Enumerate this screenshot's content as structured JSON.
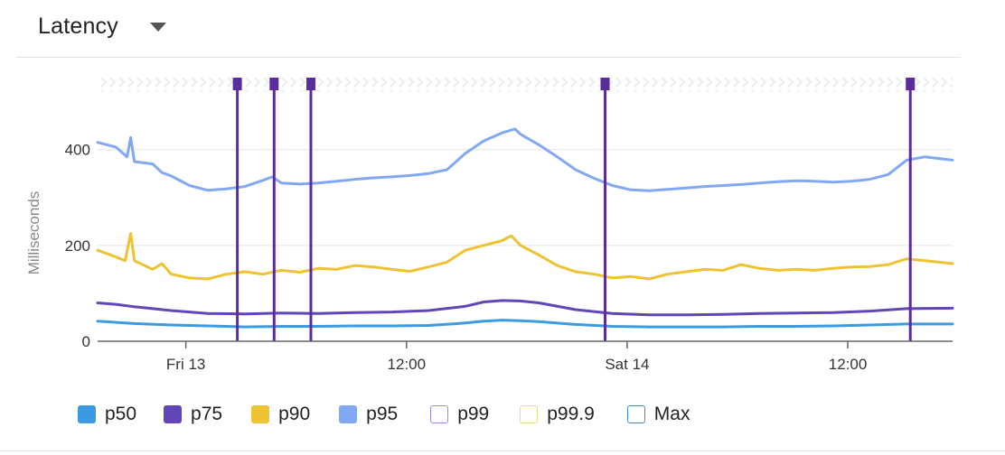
{
  "header": {
    "title": "Latency",
    "dropdown_icon": "caret-down-icon"
  },
  "chart_data": {
    "type": "line",
    "ylabel": "Milliseconds",
    "xlabel": "",
    "ylim": [
      0,
      520
    ],
    "yticks": [
      0,
      200,
      400
    ],
    "ytick_labels": [
      "0",
      "200",
      "400"
    ],
    "xlim": [
      0,
      46.5
    ],
    "xticks": [
      {
        "x": 4.8,
        "label": "Fri 13"
      },
      {
        "x": 16.8,
        "label": "12:00"
      },
      {
        "x": 28.8,
        "label": "Sat 14"
      },
      {
        "x": 40.8,
        "label": "12:00"
      }
    ],
    "events": [
      7.6,
      9.6,
      11.6,
      27.6,
      44.2
    ],
    "grid": true,
    "legend_position": "bottom",
    "series": [
      {
        "name": "p50",
        "color": "#3b9ae1",
        "filled": true,
        "visible": true,
        "x": [
          0,
          2,
          4,
          6,
          8,
          10,
          12,
          14,
          16,
          18,
          20,
          21,
          22,
          23,
          24,
          26,
          28,
          30,
          32,
          34,
          36,
          38,
          40,
          42,
          44,
          46.5
        ],
        "values": [
          42,
          37,
          34,
          32,
          30,
          31,
          31,
          32,
          32,
          33,
          38,
          42,
          44,
          43,
          41,
          35,
          31,
          30,
          30,
          30,
          31,
          31,
          32,
          34,
          36,
          36
        ]
      },
      {
        "name": "p75",
        "color": "#6146b8",
        "filled": true,
        "visible": true,
        "x": [
          0,
          1,
          2,
          4,
          6,
          8,
          10,
          12,
          14,
          16,
          18,
          20,
          21,
          22,
          23,
          24,
          26,
          28,
          30,
          32,
          34,
          36,
          38,
          40,
          42,
          44,
          46.5
        ],
        "values": [
          80,
          77,
          72,
          64,
          58,
          57,
          59,
          58,
          60,
          61,
          64,
          73,
          82,
          85,
          84,
          80,
          66,
          58,
          55,
          55,
          56,
          58,
          59,
          60,
          63,
          68,
          69
        ]
      },
      {
        "name": "p90",
        "color": "#eec232",
        "filled": true,
        "visible": true,
        "x": [
          0,
          1,
          1.5,
          1.8,
          2,
          3,
          3.5,
          4,
          5,
          6,
          7,
          8,
          9,
          10,
          11,
          12,
          13,
          14,
          15,
          16,
          17,
          18,
          19,
          20,
          21,
          22,
          22.5,
          23,
          24,
          25,
          26,
          27,
          28,
          29,
          30,
          31,
          32,
          33,
          34,
          35,
          36,
          37,
          38,
          39,
          40,
          41,
          42,
          43,
          44,
          45,
          46.5
        ],
        "values": [
          190,
          176,
          168,
          225,
          168,
          150,
          162,
          140,
          132,
          130,
          140,
          145,
          140,
          148,
          144,
          152,
          150,
          158,
          155,
          150,
          146,
          155,
          165,
          190,
          200,
          210,
          220,
          200,
          180,
          158,
          145,
          140,
          132,
          135,
          130,
          140,
          145,
          150,
          148,
          160,
          152,
          148,
          150,
          148,
          152,
          155,
          156,
          160,
          172,
          168,
          162
        ]
      },
      {
        "name": "p95",
        "color": "#82a8f4",
        "filled": true,
        "visible": true,
        "x": [
          0,
          1,
          1.6,
          1.8,
          2,
          3,
          3.5,
          4,
          5,
          6,
          7,
          8,
          9,
          9.5,
          10,
          11,
          12,
          13,
          14,
          15,
          16,
          17,
          18,
          19,
          20,
          21,
          22,
          22.7,
          23,
          24,
          25,
          26,
          27,
          28,
          29,
          30,
          31,
          32,
          33,
          34,
          35,
          36,
          37,
          38,
          39,
          40,
          41,
          42,
          43,
          44,
          45,
          46.5
        ],
        "values": [
          415,
          405,
          385,
          425,
          375,
          370,
          352,
          345,
          325,
          315,
          318,
          323,
          336,
          343,
          330,
          328,
          330,
          334,
          338,
          341,
          343,
          346,
          350,
          358,
          392,
          418,
          435,
          443,
          432,
          410,
          385,
          358,
          340,
          325,
          316,
          314,
          317,
          320,
          323,
          325,
          327,
          330,
          333,
          335,
          334,
          332,
          334,
          338,
          348,
          378,
          385,
          378
        ]
      },
      {
        "name": "p99",
        "color": "#9b87e0",
        "filled": false,
        "visible": false
      },
      {
        "name": "p99.9",
        "color": "#efd88a",
        "filled": false,
        "visible": false
      },
      {
        "name": "Max",
        "color": "#3b8ed8",
        "filled": false,
        "visible": false
      }
    ]
  }
}
